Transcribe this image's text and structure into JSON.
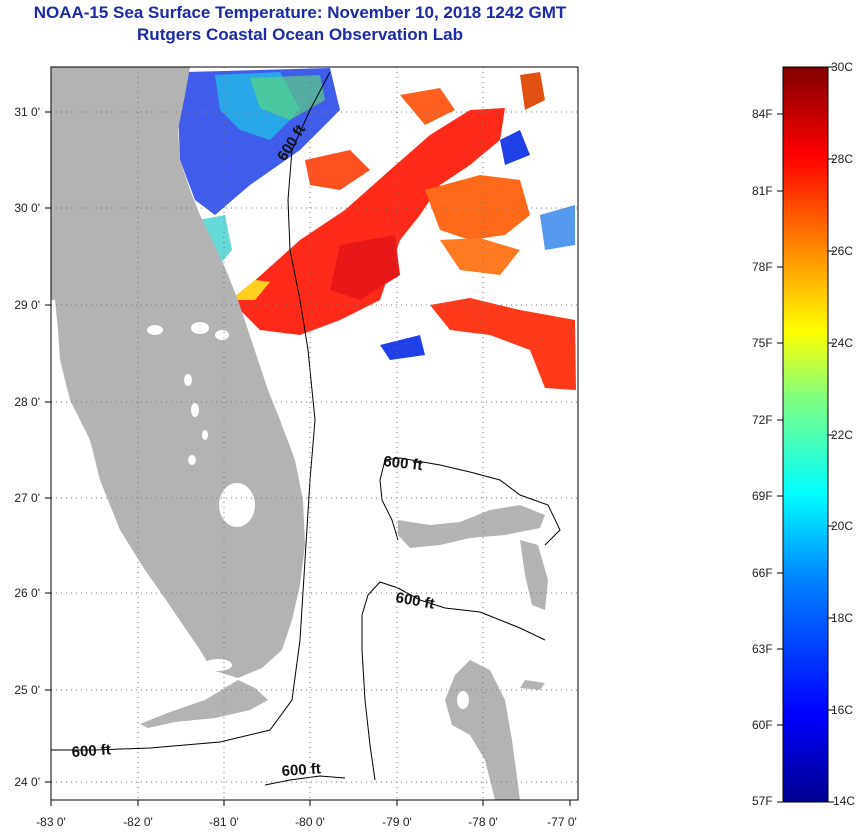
{
  "title": {
    "line1": "NOAA-15 Sea Surface Temperature:  November 10, 2018 1242 GMT",
    "line2": "Rutgers Coastal Ocean Observation Lab"
  },
  "map": {
    "lon_ticks": [
      "-83 0'",
      "-82 0'",
      "-81 0'",
      "-80 0'",
      "-79 0'",
      "-78 0'",
      "-77 0'"
    ],
    "lat_ticks": [
      "31 0'",
      "30 0'",
      "29 0'",
      "28 0'",
      "27 0'",
      "26 0'",
      "25 0'",
      "24 0'"
    ],
    "contour_label": "600 ft",
    "land_color": "#b3b3b3"
  },
  "colorbar": {
    "celsius": [
      "30C",
      "28C",
      "26C",
      "24C",
      "22C",
      "20C",
      "18C",
      "16C",
      "14C"
    ],
    "fahrenheit": [
      "84F",
      "81F",
      "78F",
      "75F",
      "72F",
      "69F",
      "66F",
      "63F",
      "60F",
      "57F"
    ]
  }
}
